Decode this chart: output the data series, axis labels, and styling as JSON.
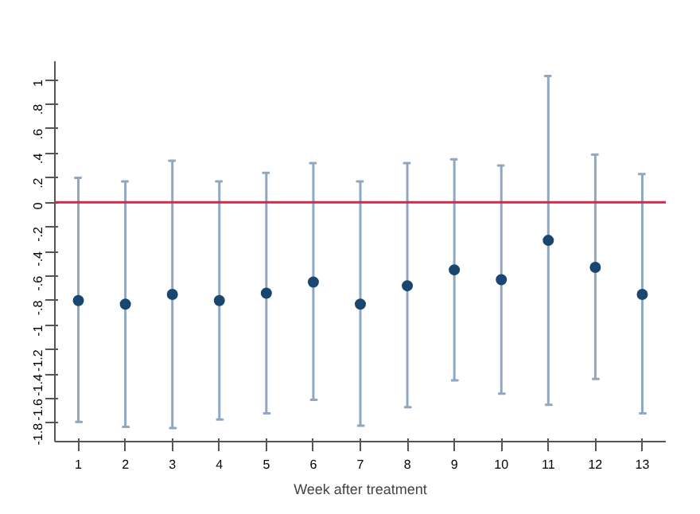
{
  "chart_data": {
    "type": "scatter",
    "xlabel": "Week after treatment",
    "x": [
      1,
      2,
      3,
      4,
      5,
      6,
      7,
      8,
      9,
      10,
      11,
      12,
      13
    ],
    "xticks": [
      1,
      2,
      3,
      4,
      5,
      6,
      7,
      8,
      9,
      10,
      11,
      12,
      13
    ],
    "xlim": [
      0.5,
      13.5
    ],
    "series": [
      {
        "color": "#1a476f",
        "values": [
          -0.8,
          -0.83,
          -0.75,
          -0.8,
          -0.74,
          -0.65,
          -0.83,
          -0.68,
          -0.55,
          -0.63,
          -0.31,
          -0.53,
          -0.75
        ],
        "errors": [
          [
            -1.79,
            0.2
          ],
          [
            -1.83,
            0.17
          ],
          [
            -1.84,
            0.34
          ],
          [
            -1.77,
            0.17
          ],
          [
            -1.72,
            0.24
          ],
          [
            -1.61,
            0.32
          ],
          [
            -1.82,
            0.17
          ],
          [
            -1.67,
            0.32
          ],
          [
            -1.45,
            0.35
          ],
          [
            -1.56,
            0.3
          ],
          [
            -1.65,
            1.03
          ],
          [
            -1.44,
            0.39
          ],
          [
            -1.72,
            0.23
          ]
        ]
      }
    ],
    "ylim": [
      -1.95,
      1.15
    ],
    "yticks": [
      {
        "value": -1.8,
        "label": "-1.8"
      },
      {
        "value": -1.6,
        "label": "-1.6"
      },
      {
        "value": -1.4,
        "label": "-1.4"
      },
      {
        "value": -1.2,
        "label": "-1.2"
      },
      {
        "value": -1,
        "label": "-1"
      },
      {
        "value": -0.8,
        "label": "-.8"
      },
      {
        "value": -0.6,
        "label": "-.6"
      },
      {
        "value": -0.4,
        "label": "-.4"
      },
      {
        "value": -0.2,
        "label": "-.2"
      },
      {
        "value": 0,
        "label": "0"
      },
      {
        "value": 0.2,
        "label": ".2"
      },
      {
        "value": 0.4,
        "label": ".4"
      },
      {
        "value": 0.6,
        "label": ".6"
      },
      {
        "value": 0.8,
        "label": ".8"
      },
      {
        "value": 1,
        "label": "1"
      }
    ],
    "ref_lines": [
      {
        "axis": "y",
        "value": 0,
        "color": "#d6264d"
      }
    ],
    "marker": "circle",
    "grid": false
  }
}
